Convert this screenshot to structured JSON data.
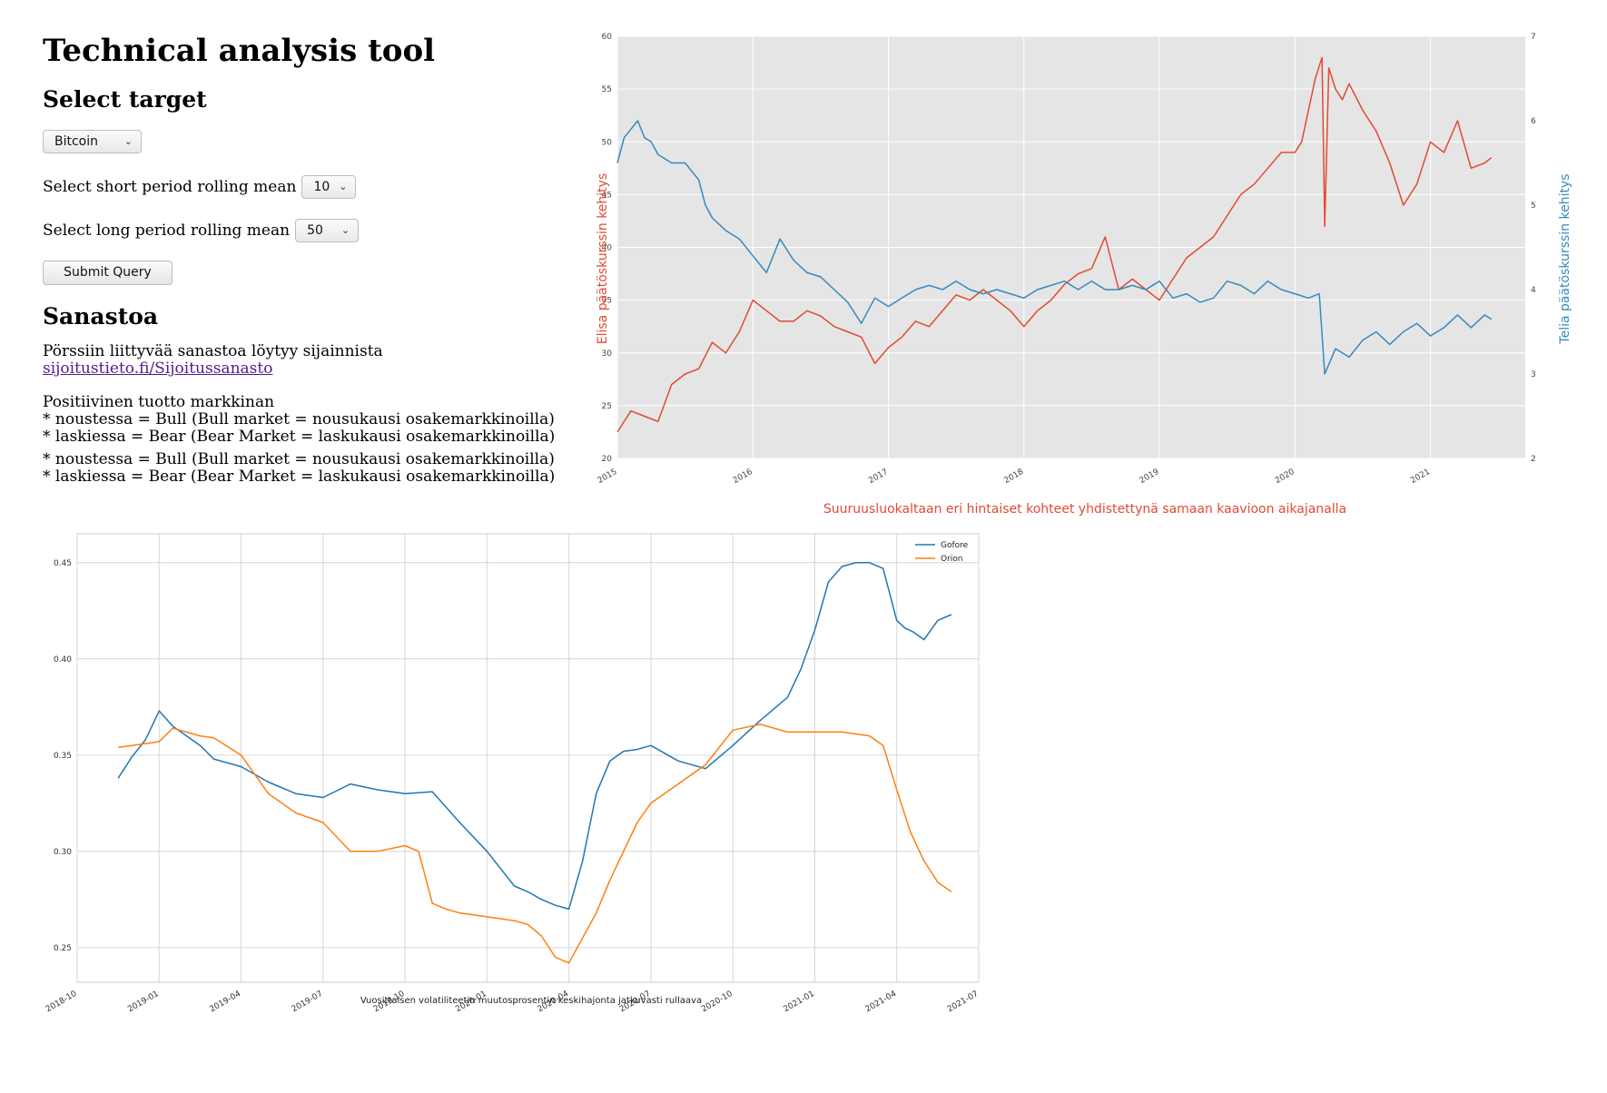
{
  "page": {
    "title": "Technical analysis tool",
    "select_target_heading": "Select target",
    "target_select": {
      "value": "Bitcoin"
    },
    "short_mean": {
      "label": "Select short period rolling mean",
      "value": "10"
    },
    "long_mean": {
      "label": "Select long period rolling mean",
      "value": "50"
    },
    "submit_label": "Submit Query",
    "sanastoa_heading": "Sanastoa",
    "glossary_text": "Pörssiin liittyvää sanastoa löytyy sijainnista ",
    "glossary_link": "sijoitustieto.fi/Sijoitussanasto",
    "info_block_1": {
      "line1": "Positiivinen tuotto markkinan",
      "line2": "* noustessa = Bull (Bull market = nousukausi osakemarkkinoilla)",
      "line3": "* laskiessa = Bear (Bear Market = laskukausi osakemarkkinoilla)"
    },
    "info_block_2": {
      "line1": "* noustessa = Bull (Bull market = nousukausi osakemarkkinoilla)",
      "line2": "* laskiessa = Bear (Bear Market = laskukausi osakemarkkinoilla)"
    }
  },
  "chart_data": [
    {
      "type": "line",
      "title": "",
      "xlabel": "Suuruusluokaltaan eri hintaiset kohteet yhdistettynä samaan kaavioon aikajanalla",
      "ylabel_left": "Elisa päätöskurssin kehitys",
      "ylabel_right": "Telia päätöskurssin kehitys",
      "xlim": [
        2015.0,
        2021.7
      ],
      "ylim_left": [
        20,
        60
      ],
      "ylim_right": [
        2,
        7
      ],
      "x_ticks": [
        "2015",
        "2016",
        "2017",
        "2018",
        "2019",
        "2020",
        "2021"
      ],
      "y_ticks_left": [
        "20",
        "25",
        "30",
        "35",
        "40",
        "45",
        "50",
        "55",
        "60"
      ],
      "y_ticks_right": [
        "2",
        "3",
        "4",
        "5",
        "6",
        "7"
      ],
      "background": "#e5e5e5",
      "colors": {
        "left": "#e24a33",
        "right": "#348abd"
      },
      "series": [
        {
          "axis": "left",
          "x": [
            2015.0,
            2015.1,
            2015.2,
            2015.3,
            2015.4,
            2015.5,
            2015.6,
            2015.7,
            2015.8,
            2015.9,
            2016.0,
            2016.1,
            2016.2,
            2016.3,
            2016.4,
            2016.5,
            2016.6,
            2016.7,
            2016.8,
            2016.9,
            2017.0,
            2017.1,
            2017.2,
            2017.3,
            2017.4,
            2017.5,
            2017.6,
            2017.7,
            2017.8,
            2017.9,
            2018.0,
            2018.1,
            2018.2,
            2018.3,
            2018.4,
            2018.5,
            2018.6,
            2018.7,
            2018.8,
            2018.9,
            2019.0,
            2019.1,
            2019.2,
            2019.3,
            2019.4,
            2019.5,
            2019.6,
            2019.7,
            2019.8,
            2019.9,
            2020.0,
            2020.05,
            2020.1,
            2020.15,
            2020.2,
            2020.22,
            2020.25,
            2020.3,
            2020.35,
            2020.4,
            2020.5,
            2020.6,
            2020.7,
            2020.8,
            2020.9,
            2021.0,
            2021.1,
            2021.2,
            2021.3,
            2021.4,
            2021.45
          ],
          "values": [
            22.5,
            24.5,
            24.0,
            23.5,
            27.0,
            28.0,
            28.5,
            31.0,
            30.0,
            32.0,
            35.0,
            34.0,
            33.0,
            33.0,
            34.0,
            33.5,
            32.5,
            32.0,
            31.5,
            29.0,
            30.5,
            31.5,
            33.0,
            32.5,
            34.0,
            35.5,
            35.0,
            36.0,
            35.0,
            34.0,
            32.5,
            34.0,
            35.0,
            36.5,
            37.5,
            38.0,
            41.0,
            36.0,
            37.0,
            36.0,
            35.0,
            37.0,
            39.0,
            40.0,
            41.0,
            43.0,
            45.0,
            46.0,
            47.5,
            49.0,
            49.0,
            50.0,
            53.0,
            56.0,
            58.0,
            42.0,
            57.0,
            55.0,
            54.0,
            55.5,
            53.0,
            51.0,
            48.0,
            44.0,
            46.0,
            50.0,
            49.0,
            52.0,
            47.5,
            48.0,
            48.5
          ]
        },
        {
          "axis": "right",
          "x": [
            2015.0,
            2015.05,
            2015.1,
            2015.15,
            2015.2,
            2015.25,
            2015.3,
            2015.4,
            2015.5,
            2015.6,
            2015.65,
            2015.7,
            2015.8,
            2015.9,
            2016.0,
            2016.1,
            2016.2,
            2016.3,
            2016.4,
            2016.5,
            2016.6,
            2016.7,
            2016.8,
            2016.9,
            2017.0,
            2017.1,
            2017.2,
            2017.3,
            2017.4,
            2017.5,
            2017.6,
            2017.7,
            2017.8,
            2017.9,
            2018.0,
            2018.1,
            2018.2,
            2018.3,
            2018.4,
            2018.5,
            2018.6,
            2018.7,
            2018.8,
            2018.9,
            2019.0,
            2019.1,
            2019.2,
            2019.3,
            2019.4,
            2019.5,
            2019.6,
            2019.7,
            2019.8,
            2019.9,
            2020.0,
            2020.1,
            2020.18,
            2020.22,
            2020.3,
            2020.4,
            2020.5,
            2020.6,
            2020.7,
            2020.8,
            2020.9,
            2021.0,
            2021.1,
            2021.2,
            2021.3,
            2021.4,
            2021.45
          ],
          "values": [
            5.5,
            5.8,
            5.9,
            6.0,
            5.8,
            5.75,
            5.6,
            5.5,
            5.5,
            5.3,
            5.0,
            4.85,
            4.7,
            4.6,
            4.4,
            4.2,
            4.6,
            4.35,
            4.2,
            4.15,
            4.0,
            3.85,
            3.6,
            3.9,
            3.8,
            3.9,
            4.0,
            4.05,
            4.0,
            4.1,
            4.0,
            3.95,
            4.0,
            3.95,
            3.9,
            4.0,
            4.05,
            4.1,
            4.0,
            4.1,
            4.0,
            4.0,
            4.05,
            4.0,
            4.1,
            3.9,
            3.95,
            3.85,
            3.9,
            4.1,
            4.05,
            3.95,
            4.1,
            4.0,
            3.95,
            3.9,
            3.95,
            3.0,
            3.3,
            3.2,
            3.4,
            3.5,
            3.35,
            3.5,
            3.6,
            3.45,
            3.55,
            3.7,
            3.55,
            3.7,
            3.65
          ]
        }
      ]
    },
    {
      "type": "line",
      "title": "",
      "xlabel": "Vuosittaisen volatiliteetin muutosprosentin keskihajonta jatkuvasti rullaava",
      "ylabel": "",
      "x_ticks": [
        "2018-10",
        "2019-01",
        "2019-04",
        "2019-07",
        "2019-10",
        "2020-01",
        "2020-04",
        "2020-07",
        "2020-10",
        "2021-01",
        "2021-04",
        "2021-07"
      ],
      "y_ticks": [
        "0.25",
        "0.30",
        "0.35",
        "0.40",
        "0.45"
      ],
      "xlim": [
        0,
        33
      ],
      "ylim": [
        0.232,
        0.465
      ],
      "legend_placement": "top-right",
      "colors": {
        "Gofore": "#1f77b4",
        "Orion": "#ff7f0e"
      },
      "series": [
        {
          "name": "Gofore",
          "x": [
            1.5,
            2.0,
            2.5,
            3.0,
            3.5,
            4.0,
            4.5,
            5.0,
            6.0,
            7.0,
            8.0,
            9.0,
            10.0,
            11.0,
            12.0,
            13.0,
            14.0,
            15.0,
            16.0,
            16.5,
            17.0,
            17.5,
            18.0,
            18.5,
            19.0,
            19.5,
            20.0,
            20.5,
            21.0,
            22.0,
            23.0,
            24.0,
            25.0,
            26.0,
            26.5,
            27.0,
            27.5,
            28.0,
            28.5,
            29.0,
            29.5,
            30.0,
            30.3,
            30.6,
            31.0,
            31.5,
            32.0
          ],
          "values": [
            0.338,
            0.349,
            0.358,
            0.373,
            0.365,
            0.36,
            0.355,
            0.348,
            0.344,
            0.336,
            0.33,
            0.328,
            0.335,
            0.332,
            0.33,
            0.331,
            0.315,
            0.3,
            0.282,
            0.279,
            0.275,
            0.272,
            0.27,
            0.295,
            0.33,
            0.347,
            0.352,
            0.353,
            0.355,
            0.347,
            0.343,
            0.355,
            0.368,
            0.38,
            0.395,
            0.415,
            0.44,
            0.448,
            0.45,
            0.45,
            0.447,
            0.42,
            0.416,
            0.414,
            0.41,
            0.42,
            0.423
          ]
        },
        {
          "name": "Orion",
          "x": [
            1.5,
            2.0,
            2.5,
            3.0,
            3.5,
            4.0,
            4.5,
            5.0,
            6.0,
            7.0,
            8.0,
            9.0,
            10.0,
            11.0,
            12.0,
            12.5,
            13.0,
            13.5,
            14.0,
            15.0,
            16.0,
            16.5,
            17.0,
            17.5,
            18.0,
            18.5,
            19.0,
            19.5,
            20.0,
            20.5,
            21.0,
            22.0,
            23.0,
            24.0,
            25.0,
            26.0,
            27.0,
            28.0,
            28.5,
            29.0,
            29.5,
            30.0,
            30.5,
            31.0,
            31.5,
            32.0
          ],
          "values": [
            0.354,
            0.355,
            0.356,
            0.357,
            0.364,
            0.362,
            0.36,
            0.359,
            0.35,
            0.33,
            0.32,
            0.315,
            0.3,
            0.3,
            0.303,
            0.3,
            0.273,
            0.27,
            0.268,
            0.266,
            0.264,
            0.262,
            0.256,
            0.245,
            0.242,
            0.255,
            0.268,
            0.285,
            0.3,
            0.315,
            0.325,
            0.335,
            0.345,
            0.363,
            0.366,
            0.362,
            0.362,
            0.362,
            0.361,
            0.36,
            0.355,
            0.332,
            0.31,
            0.295,
            0.284,
            0.279
          ]
        }
      ]
    }
  ]
}
